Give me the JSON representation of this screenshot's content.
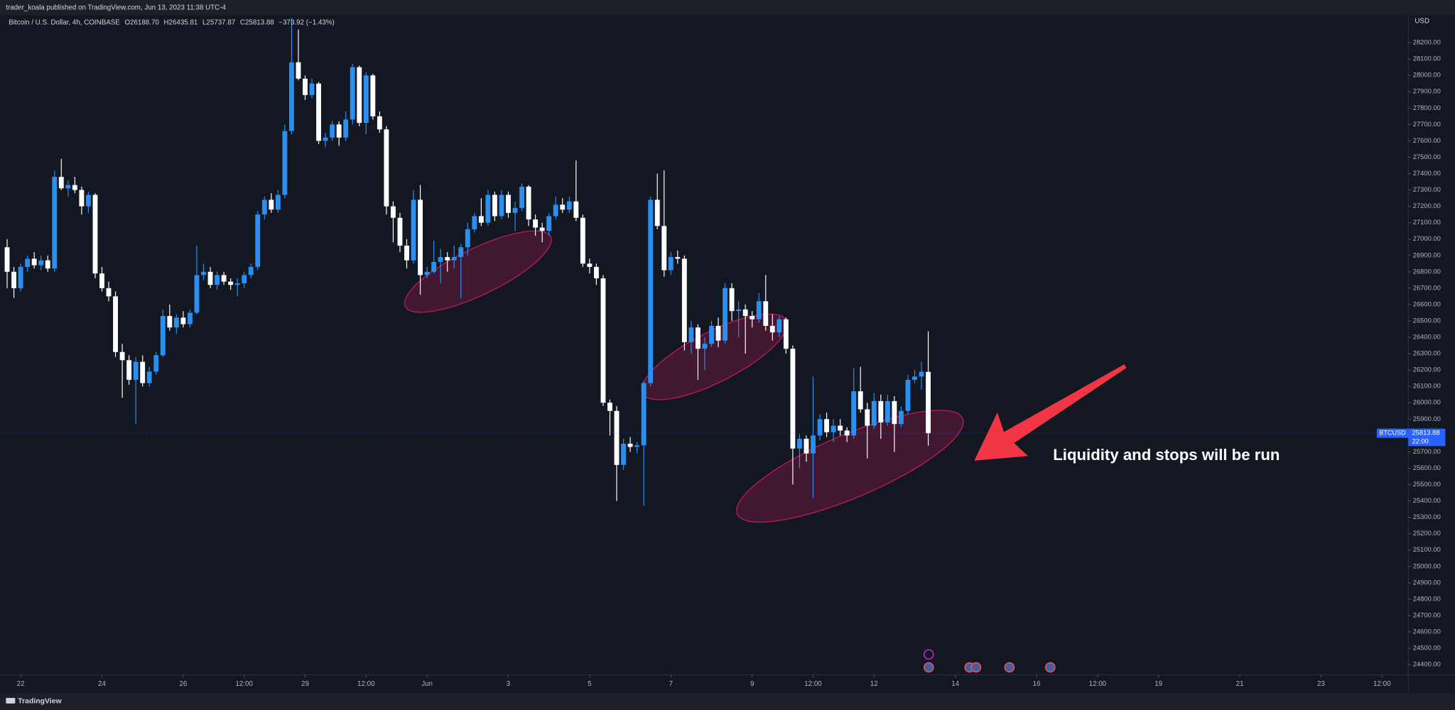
{
  "header": {
    "publisher": "trader_koala published on TradingView.com, Jun 13, 2023 11:38 UTC-4",
    "symbol": "Bitcoin / U.S. Dollar, 4h, COINBASE",
    "open": "O26188.70",
    "high": "H26435.81",
    "low": "L25737.87",
    "close": "C25813.88",
    "change": "−373.92 (−1.43%)"
  },
  "price_tag": {
    "symbol": "BTCUSD",
    "value": "25813.88",
    "countdown": "22:00"
  },
  "footer": {
    "brand": "TradingView"
  },
  "annotation": "Liquidity and stops will be run",
  "chart_data": {
    "type": "candlestick",
    "currency": "USD",
    "up_color": "#2b8ff0",
    "down_color": "#ffffff",
    "xlim": [
      "2023-05-21T12:00",
      "2023-06-25T03:30"
    ],
    "ylim": [
      24338,
      28370
    ],
    "xticks": [
      {
        "value": "2023-05-22T00:00",
        "label": "22"
      },
      {
        "value": "2023-05-24T00:00",
        "label": "24"
      },
      {
        "value": "2023-05-26T00:00",
        "label": "26"
      },
      {
        "value": "2023-05-27T12:00",
        "label": "12:00"
      },
      {
        "value": "2023-05-29T00:00",
        "label": "29"
      },
      {
        "value": "2023-05-30T12:00",
        "label": "12:00"
      },
      {
        "value": "2023-06-01T00:00",
        "label": "Jun"
      },
      {
        "value": "2023-06-03T00:00",
        "label": "3"
      },
      {
        "value": "2023-06-05T00:00",
        "label": "5"
      },
      {
        "value": "2023-06-07T00:00",
        "label": "7"
      },
      {
        "value": "2023-06-09T00:00",
        "label": "9"
      },
      {
        "value": "2023-06-10T12:00",
        "label": "12:00"
      },
      {
        "value": "2023-06-12T00:00",
        "label": "12"
      },
      {
        "value": "2023-06-14T00:00",
        "label": "14"
      },
      {
        "value": "2023-06-16T00:00",
        "label": "16"
      },
      {
        "value": "2023-06-17T12:00",
        "label": "12:00"
      },
      {
        "value": "2023-06-19T00:00",
        "label": "19"
      },
      {
        "value": "2023-06-21T00:00",
        "label": "21"
      },
      {
        "value": "2023-06-23T00:00",
        "label": "23"
      },
      {
        "value": "2023-06-24T12:00",
        "label": "12:00"
      }
    ],
    "yticks": [
      {
        "value": 28200,
        "label": "28200.00"
      },
      {
        "value": 28100,
        "label": "28100.00"
      },
      {
        "value": 28000,
        "label": "28000.00"
      },
      {
        "value": 27900,
        "label": "27900.00"
      },
      {
        "value": 27800,
        "label": "27800.00"
      },
      {
        "value": 27700,
        "label": "27700.00"
      },
      {
        "value": 27600,
        "label": "27600.00"
      },
      {
        "value": 27500,
        "label": "27500.00"
      },
      {
        "value": 27400,
        "label": "27400.00"
      },
      {
        "value": 27300,
        "label": "27300.00"
      },
      {
        "value": 27200,
        "label": "27200.00"
      },
      {
        "value": 27100,
        "label": "27100.00"
      },
      {
        "value": 27000,
        "label": "27000.00"
      },
      {
        "value": 26900,
        "label": "26900.00"
      },
      {
        "value": 26800,
        "label": "26800.00"
      },
      {
        "value": 26700,
        "label": "26700.00"
      },
      {
        "value": 26600,
        "label": "26600.00"
      },
      {
        "value": 26500,
        "label": "26500.00"
      },
      {
        "value": 26400,
        "label": "26400.00"
      },
      {
        "value": 26300,
        "label": "26300.00"
      },
      {
        "value": 26200,
        "label": "26200.00"
      },
      {
        "value": 26100,
        "label": "26100.00"
      },
      {
        "value": 26000,
        "label": "26000.00"
      },
      {
        "value": 25900,
        "label": "25900.00"
      },
      {
        "value": 25800,
        "label": "25800.00"
      },
      {
        "value": 25700,
        "label": "25700.00"
      },
      {
        "value": 25600,
        "label": "25600.00"
      },
      {
        "value": 25500,
        "label": "25500.00"
      },
      {
        "value": 25400,
        "label": "25400.00"
      },
      {
        "value": 25300,
        "label": "25300.00"
      },
      {
        "value": 25200,
        "label": "25200.00"
      },
      {
        "value": 25100,
        "label": "25100.00"
      },
      {
        "value": 25000,
        "label": "25000.00"
      },
      {
        "value": 24900,
        "label": "24900.00"
      },
      {
        "value": 24800,
        "label": "24800.00"
      },
      {
        "value": 24700,
        "label": "24700.00"
      },
      {
        "value": 24600,
        "label": "24600.00"
      },
      {
        "value": 24500,
        "label": "24500.00"
      },
      {
        "value": 24400,
        "label": "24400.00"
      }
    ],
    "x": [
      "2023-05-21T16:00",
      "2023-05-21T20:00",
      "2023-05-22T00:00",
      "2023-05-22T04:00",
      "2023-05-22T08:00",
      "2023-05-22T12:00",
      "2023-05-22T16:00",
      "2023-05-22T20:00",
      "2023-05-23T00:00",
      "2023-05-23T04:00",
      "2023-05-23T08:00",
      "2023-05-23T12:00",
      "2023-05-23T16:00",
      "2023-05-23T20:00",
      "2023-05-24T00:00",
      "2023-05-24T04:00",
      "2023-05-24T08:00",
      "2023-05-24T12:00",
      "2023-05-24T16:00",
      "2023-05-24T20:00",
      "2023-05-25T00:00",
      "2023-05-25T04:00",
      "2023-05-25T08:00",
      "2023-05-25T12:00",
      "2023-05-25T16:00",
      "2023-05-25T20:00",
      "2023-05-26T00:00",
      "2023-05-26T04:00",
      "2023-05-26T08:00",
      "2023-05-26T12:00",
      "2023-05-26T16:00",
      "2023-05-26T20:00",
      "2023-05-27T00:00",
      "2023-05-27T04:00",
      "2023-05-27T08:00",
      "2023-05-27T12:00",
      "2023-05-27T16:00",
      "2023-05-27T20:00",
      "2023-05-28T00:00",
      "2023-05-28T04:00",
      "2023-05-28T08:00",
      "2023-05-28T12:00",
      "2023-05-28T16:00",
      "2023-05-28T20:00",
      "2023-05-29T00:00",
      "2023-05-29T04:00",
      "2023-05-29T08:00",
      "2023-05-29T12:00",
      "2023-05-29T16:00",
      "2023-05-29T20:00",
      "2023-05-30T00:00",
      "2023-05-30T04:00",
      "2023-05-30T08:00",
      "2023-05-30T12:00",
      "2023-05-30T16:00",
      "2023-05-30T20:00",
      "2023-05-31T00:00",
      "2023-05-31T04:00",
      "2023-05-31T08:00",
      "2023-05-31T12:00",
      "2023-05-31T16:00",
      "2023-05-31T20:00",
      "2023-06-01T00:00",
      "2023-06-01T04:00",
      "2023-06-01T08:00",
      "2023-06-01T12:00",
      "2023-06-01T16:00",
      "2023-06-01T20:00",
      "2023-06-02T00:00",
      "2023-06-02T04:00",
      "2023-06-02T08:00",
      "2023-06-02T12:00",
      "2023-06-02T16:00",
      "2023-06-02T20:00",
      "2023-06-03T00:00",
      "2023-06-03T04:00",
      "2023-06-03T08:00",
      "2023-06-03T12:00",
      "2023-06-03T16:00",
      "2023-06-03T20:00",
      "2023-06-04T00:00",
      "2023-06-04T04:00",
      "2023-06-04T08:00",
      "2023-06-04T12:00",
      "2023-06-04T16:00",
      "2023-06-04T20:00",
      "2023-06-05T00:00",
      "2023-06-05T04:00",
      "2023-06-05T08:00",
      "2023-06-05T12:00",
      "2023-06-05T16:00",
      "2023-06-05T20:00",
      "2023-06-06T00:00",
      "2023-06-06T04:00",
      "2023-06-06T08:00",
      "2023-06-06T12:00",
      "2023-06-06T16:00",
      "2023-06-06T20:00",
      "2023-06-07T00:00",
      "2023-06-07T04:00",
      "2023-06-07T08:00",
      "2023-06-07T12:00",
      "2023-06-07T16:00",
      "2023-06-07T20:00",
      "2023-06-08T00:00",
      "2023-06-08T04:00",
      "2023-06-08T08:00",
      "2023-06-08T12:00",
      "2023-06-08T16:00",
      "2023-06-08T20:00",
      "2023-06-09T00:00",
      "2023-06-09T04:00",
      "2023-06-09T08:00",
      "2023-06-09T12:00",
      "2023-06-09T16:00",
      "2023-06-09T20:00",
      "2023-06-10T00:00",
      "2023-06-10T04:00",
      "2023-06-10T08:00",
      "2023-06-10T12:00",
      "2023-06-10T16:00",
      "2023-06-10T20:00",
      "2023-06-11T00:00",
      "2023-06-11T04:00",
      "2023-06-11T08:00",
      "2023-06-11T12:00",
      "2023-06-11T16:00",
      "2023-06-11T20:00",
      "2023-06-12T00:00",
      "2023-06-12T04:00",
      "2023-06-12T08:00",
      "2023-06-12T12:00",
      "2023-06-12T16:00",
      "2023-06-12T20:00",
      "2023-06-13T00:00",
      "2023-06-13T04:00",
      "2023-06-13T08:00"
    ],
    "ohlc": [
      [
        26950,
        27000,
        26700,
        26800
      ],
      [
        26800,
        26830,
        26640,
        26700
      ],
      [
        26700,
        26850,
        26680,
        26830
      ],
      [
        26830,
        26900,
        26800,
        26880
      ],
      [
        26880,
        26920,
        26820,
        26840
      ],
      [
        26840,
        26900,
        26810,
        26870
      ],
      [
        26870,
        26900,
        26800,
        26820
      ],
      [
        26820,
        27420,
        26800,
        27380
      ],
      [
        27380,
        27490,
        27300,
        27310
      ],
      [
        27310,
        27360,
        27260,
        27330
      ],
      [
        27330,
        27380,
        27280,
        27300
      ],
      [
        27300,
        27320,
        27150,
        27200
      ],
      [
        27200,
        27290,
        27160,
        27270
      ],
      [
        27270,
        27280,
        26760,
        26790
      ],
      [
        26790,
        26830,
        26680,
        26700
      ],
      [
        26700,
        26740,
        26620,
        26650
      ],
      [
        26650,
        26680,
        26280,
        26310
      ],
      [
        26310,
        26360,
        26030,
        26260
      ],
      [
        26260,
        26290,
        26110,
        26140
      ],
      [
        26140,
        26280,
        25870,
        26250
      ],
      [
        26250,
        26290,
        26100,
        26120
      ],
      [
        26120,
        26220,
        26100,
        26190
      ],
      [
        26190,
        26310,
        26170,
        26290
      ],
      [
        26290,
        26570,
        26280,
        26530
      ],
      [
        26530,
        26600,
        26440,
        26460
      ],
      [
        26460,
        26540,
        26420,
        26520
      ],
      [
        26520,
        26560,
        26460,
        26480
      ],
      [
        26480,
        26570,
        26460,
        26550
      ],
      [
        26550,
        26960,
        26540,
        26780
      ],
      [
        26780,
        26850,
        26750,
        26800
      ],
      [
        26800,
        26830,
        26700,
        26720
      ],
      [
        26720,
        26800,
        26690,
        26780
      ],
      [
        26780,
        26800,
        26720,
        26740
      ],
      [
        26740,
        26760,
        26690,
        26720
      ],
      [
        26720,
        26760,
        26650,
        26730
      ],
      [
        26730,
        26800,
        26700,
        26780
      ],
      [
        26780,
        26850,
        26760,
        26830
      ],
      [
        26830,
        27170,
        26810,
        27150
      ],
      [
        27150,
        27260,
        27120,
        27240
      ],
      [
        27240,
        27280,
        27160,
        27180
      ],
      [
        27180,
        27300,
        27160,
        27270
      ],
      [
        27270,
        27700,
        27250,
        27660
      ],
      [
        27660,
        28350,
        27640,
        28080
      ],
      [
        28080,
        28280,
        27970,
        27980
      ],
      [
        27980,
        28000,
        27850,
        27880
      ],
      [
        27880,
        27980,
        27860,
        27950
      ],
      [
        27950,
        27960,
        27580,
        27600
      ],
      [
        27600,
        27650,
        27560,
        27620
      ],
      [
        27620,
        27720,
        27600,
        27700
      ],
      [
        27700,
        27720,
        27570,
        27620
      ],
      [
        27620,
        27780,
        27600,
        27730
      ],
      [
        27730,
        28070,
        27700,
        28050
      ],
      [
        28050,
        28060,
        27690,
        27710
      ],
      [
        27710,
        28020,
        27640,
        28000
      ],
      [
        28000,
        28010,
        27730,
        27750
      ],
      [
        27750,
        27780,
        27650,
        27670
      ],
      [
        27670,
        27690,
        27150,
        27200
      ],
      [
        27200,
        27230,
        26980,
        27130
      ],
      [
        27130,
        27160,
        26920,
        26960
      ],
      [
        26960,
        27000,
        26820,
        26870
      ],
      [
        26870,
        27300,
        26850,
        27240
      ],
      [
        27240,
        27330,
        26660,
        26780
      ],
      [
        26780,
        26830,
        26760,
        26800
      ],
      [
        26800,
        26990,
        26790,
        26860
      ],
      [
        26860,
        26940,
        26730,
        26890
      ],
      [
        26890,
        26920,
        26800,
        26870
      ],
      [
        26870,
        26960,
        26820,
        26890
      ],
      [
        26890,
        26970,
        26640,
        26950
      ],
      [
        26950,
        27100,
        26900,
        27060
      ],
      [
        27060,
        27160,
        27040,
        27140
      ],
      [
        27140,
        27250,
        27080,
        27100
      ],
      [
        27100,
        27300,
        27080,
        27270
      ],
      [
        27270,
        27290,
        27110,
        27140
      ],
      [
        27140,
        27300,
        27120,
        27270
      ],
      [
        27270,
        27290,
        27130,
        27160
      ],
      [
        27160,
        27230,
        27050,
        27190
      ],
      [
        27190,
        27340,
        27170,
        27320
      ],
      [
        27320,
        27330,
        27080,
        27120
      ],
      [
        27120,
        27150,
        27020,
        27070
      ],
      [
        27070,
        27100,
        26980,
        27050
      ],
      [
        27050,
        27160,
        27020,
        27140
      ],
      [
        27140,
        27260,
        27120,
        27210
      ],
      [
        27210,
        27250,
        27160,
        27180
      ],
      [
        27180,
        27260,
        27160,
        27230
      ],
      [
        27230,
        27480,
        27110,
        27130
      ],
      [
        27130,
        27150,
        26830,
        26850
      ],
      [
        26850,
        26880,
        26790,
        26830
      ],
      [
        26830,
        26850,
        26720,
        26760
      ],
      [
        26760,
        26780,
        25980,
        26000
      ],
      [
        26000,
        26020,
        25800,
        25950
      ],
      [
        25950,
        25980,
        25400,
        25620
      ],
      [
        25620,
        25780,
        25590,
        25750
      ],
      [
        25750,
        25790,
        25700,
        25730
      ],
      [
        25730,
        25760,
        25690,
        25740
      ],
      [
        25740,
        26130,
        25370,
        26120
      ],
      [
        26120,
        27260,
        26100,
        27240
      ],
      [
        27240,
        27400,
        27060,
        27080
      ],
      [
        27080,
        27420,
        26770,
        26810
      ],
      [
        26810,
        26920,
        26780,
        26890
      ],
      [
        26890,
        26930,
        26850,
        26880
      ],
      [
        26880,
        26900,
        26320,
        26370
      ],
      [
        26370,
        26500,
        26300,
        26460
      ],
      [
        26460,
        26480,
        26140,
        26330
      ],
      [
        26330,
        26400,
        26200,
        26360
      ],
      [
        26360,
        26500,
        26340,
        26470
      ],
      [
        26470,
        26520,
        26340,
        26380
      ],
      [
        26380,
        26730,
        26360,
        26700
      ],
      [
        26700,
        26730,
        26500,
        26560
      ],
      [
        26560,
        26620,
        26400,
        26570
      ],
      [
        26570,
        26600,
        26300,
        26530
      ],
      [
        26530,
        26560,
        26460,
        26510
      ],
      [
        26510,
        26670,
        26490,
        26620
      ],
      [
        26620,
        26780,
        26440,
        26470
      ],
      [
        26470,
        26540,
        26380,
        26430
      ],
      [
        26430,
        26530,
        26400,
        26510
      ],
      [
        26510,
        26520,
        26300,
        26330
      ],
      [
        26330,
        26350,
        25500,
        25720
      ],
      [
        25720,
        25810,
        25600,
        25780
      ],
      [
        25780,
        25800,
        25640,
        25690
      ],
      [
        25690,
        26160,
        25420,
        25800
      ],
      [
        25800,
        25930,
        25770,
        25900
      ],
      [
        25900,
        25940,
        25790,
        25820
      ],
      [
        25820,
        25900,
        25760,
        25860
      ],
      [
        25860,
        25900,
        25800,
        25830
      ],
      [
        25830,
        25850,
        25760,
        25800
      ],
      [
        25800,
        26210,
        25780,
        26070
      ],
      [
        26070,
        26220,
        25940,
        25960
      ],
      [
        25960,
        26000,
        25660,
        25860
      ],
      [
        25860,
        26060,
        25840,
        26010
      ],
      [
        26010,
        26050,
        25780,
        25880
      ],
      [
        25880,
        26050,
        25860,
        26010
      ],
      [
        26010,
        26040,
        25700,
        25870
      ],
      [
        25870,
        25980,
        25850,
        25950
      ],
      [
        25950,
        26170,
        25930,
        26140
      ],
      [
        26140,
        26200,
        26120,
        26160
      ],
      [
        26160,
        26250,
        26080,
        26188.7
      ],
      [
        26188.7,
        26435.81,
        25737.87,
        25813.88
      ]
    ]
  }
}
